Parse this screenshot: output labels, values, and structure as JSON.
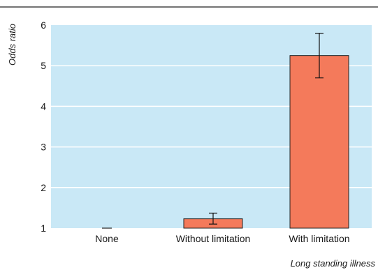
{
  "chart_data": {
    "type": "bar",
    "title": "",
    "xlabel": "Long standing illness",
    "ylabel": "Odds ratio",
    "categories": [
      "None",
      "Without limitation",
      "With limitation"
    ],
    "values": [
      1.0,
      1.23,
      5.25
    ],
    "error_bars": [
      {
        "low": 1.0,
        "high": 1.0
      },
      {
        "low": 1.1,
        "high": 1.37
      },
      {
        "low": 4.7,
        "high": 5.8
      }
    ],
    "ylim": [
      1,
      6
    ],
    "yticks": [
      "1",
      "2",
      "3",
      "4",
      "5",
      "6"
    ],
    "grid": true,
    "legend": "none",
    "colors": {
      "bar": "#f47a5b",
      "plot_background": "#c9e8f6",
      "gridline": "#ffffff",
      "bar_outline": "#222222",
      "top_rule": "#222222"
    }
  }
}
